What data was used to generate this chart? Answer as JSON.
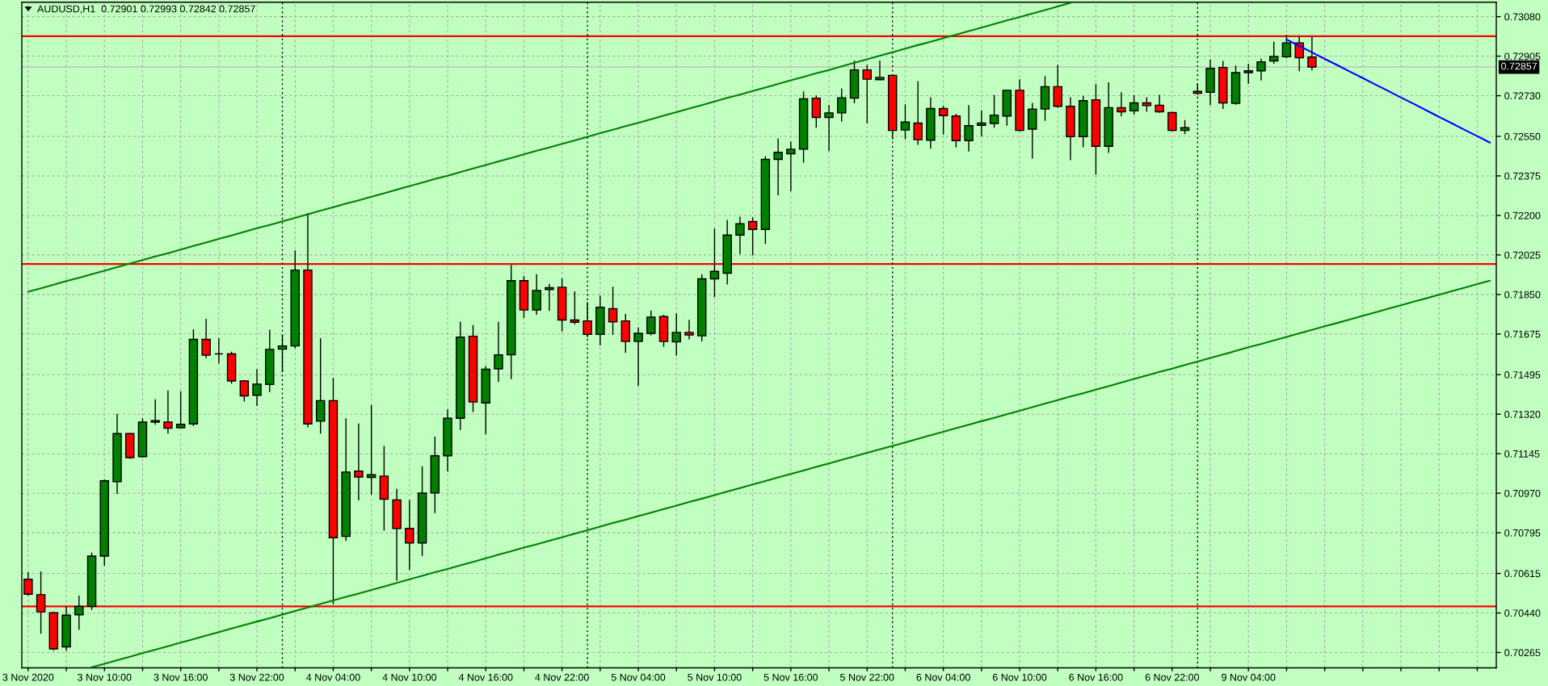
{
  "chart_data": {
    "type": "candlestick",
    "title": "AUDUSD,H1  0.72901 0.72993 0.72842 0.72857",
    "categories": [
      "3 Nov 2020",
      null,
      null,
      null,
      null,
      null,
      "3 Nov 10:00",
      null,
      null,
      null,
      null,
      null,
      "3 Nov 16:00",
      null,
      null,
      null,
      null,
      null,
      "3 Nov 22:00",
      null,
      null,
      null,
      null,
      null,
      "4 Nov 04:00",
      null,
      null,
      null,
      null,
      null,
      "4 Nov 10:00",
      null,
      null,
      null,
      null,
      null,
      "4 Nov 16:00",
      null,
      null,
      null,
      null,
      null,
      "4 Nov 22:00",
      null,
      null,
      null,
      null,
      null,
      "5 Nov 04:00",
      null,
      null,
      null,
      null,
      null,
      "5 Nov 10:00",
      null,
      null,
      null,
      null,
      null,
      "5 Nov 16:00",
      null,
      null,
      null,
      null,
      null,
      "5 Nov 22:00",
      null,
      null,
      null,
      null,
      null,
      "6 Nov 04:00",
      null,
      null,
      null,
      null,
      null,
      "6 Nov 10:00",
      null,
      null,
      null,
      null,
      null,
      "6 Nov 16:00",
      null,
      null,
      null,
      null,
      null,
      "6 Nov 22:00",
      null,
      null,
      null,
      null,
      null,
      "9 Nov 04:00",
      null,
      null,
      null,
      null,
      null,
      null,
      null,
      null,
      null,
      null,
      null,
      null,
      null,
      null,
      null,
      null,
      null,
      null,
      null
    ],
    "ohlc": [
      [
        0.70589,
        0.7062,
        0.70517,
        0.70523
      ],
      [
        0.70521,
        0.70624,
        0.70348,
        0.70445
      ],
      [
        0.70441,
        0.70445,
        0.70273,
        0.70281
      ],
      [
        0.7029,
        0.70469,
        0.70273,
        0.7043
      ],
      [
        0.70432,
        0.70517,
        0.70366,
        0.70469
      ],
      [
        0.70469,
        0.70707,
        0.70453,
        0.70692
      ],
      [
        0.70692,
        0.71031,
        0.70649,
        0.71025
      ],
      [
        0.71021,
        0.71322,
        0.70967,
        0.71234
      ],
      [
        0.71234,
        0.71238,
        0.71122,
        0.71128
      ],
      [
        0.71132,
        0.71302,
        0.71128,
        0.71285
      ],
      [
        0.71285,
        0.71386,
        0.71273,
        0.71291
      ],
      [
        0.71285,
        0.71424,
        0.71234,
        0.71258
      ],
      [
        0.7126,
        0.71422,
        0.71258,
        0.71275
      ],
      [
        0.71277,
        0.71696,
        0.71267,
        0.71651
      ],
      [
        0.71651,
        0.71742,
        0.71568,
        0.71581
      ],
      [
        0.71587,
        0.71657,
        0.71545,
        0.71587
      ],
      [
        0.71587,
        0.71597,
        0.71455,
        0.71467
      ],
      [
        0.71467,
        0.71471,
        0.71376,
        0.71401
      ],
      [
        0.71404,
        0.71519,
        0.71356,
        0.71453
      ],
      [
        0.71452,
        0.71694,
        0.71417,
        0.71607
      ],
      [
        0.71608,
        0.71671,
        0.71506,
        0.71622
      ],
      [
        0.71622,
        0.72045,
        0.71612,
        0.71958
      ],
      [
        0.71958,
        0.7221,
        0.71262,
        0.71277
      ],
      [
        0.71289,
        0.71657,
        0.71234,
        0.7138
      ],
      [
        0.7138,
        0.71481,
        0.70478,
        0.70773
      ],
      [
        0.70779,
        0.71302,
        0.70759,
        0.71064
      ],
      [
        0.71068,
        0.71279,
        0.70938,
        0.71042
      ],
      [
        0.7104,
        0.7136,
        0.70963,
        0.71052
      ],
      [
        0.71046,
        0.7118,
        0.70804,
        0.70944
      ],
      [
        0.7094,
        0.7099,
        0.70583,
        0.70814
      ],
      [
        0.70814,
        0.7094,
        0.7063,
        0.7075
      ],
      [
        0.7075,
        0.71089,
        0.70692,
        0.70971
      ],
      [
        0.70971,
        0.71221,
        0.70882,
        0.71136
      ],
      [
        0.71136,
        0.71341,
        0.71066,
        0.71302
      ],
      [
        0.71302,
        0.71729,
        0.7125,
        0.71661
      ],
      [
        0.71665,
        0.71715,
        0.7133,
        0.71374
      ],
      [
        0.7137,
        0.71533,
        0.71231,
        0.71519
      ],
      [
        0.71521,
        0.71729,
        0.71463,
        0.71583
      ],
      [
        0.71583,
        0.71981,
        0.71475,
        0.71911
      ],
      [
        0.71911,
        0.71932,
        0.71746,
        0.71781
      ],
      [
        0.71781,
        0.7194,
        0.7176,
        0.71868
      ],
      [
        0.71872,
        0.71897,
        0.71777,
        0.7188
      ],
      [
        0.71882,
        0.71921,
        0.71686,
        0.71737
      ],
      [
        0.71737,
        0.71864,
        0.71717,
        0.71727
      ],
      [
        0.71733,
        0.71816,
        0.71661,
        0.71673
      ],
      [
        0.71673,
        0.71845,
        0.71624,
        0.71793
      ],
      [
        0.71787,
        0.71884,
        0.71671,
        0.71729
      ],
      [
        0.71733,
        0.71764,
        0.71591,
        0.71642
      ],
      [
        0.71642,
        0.71704,
        0.71444,
        0.71678
      ],
      [
        0.71678,
        0.71779,
        0.71669,
        0.7175
      ],
      [
        0.71752,
        0.7176,
        0.71618,
        0.71642
      ],
      [
        0.7164,
        0.71766,
        0.71579,
        0.71682
      ],
      [
        0.71682,
        0.71738,
        0.71651,
        0.71671
      ],
      [
        0.71667,
        0.7194,
        0.71642,
        0.71919
      ],
      [
        0.71919,
        0.72142,
        0.71839,
        0.71952
      ],
      [
        0.71944,
        0.7218,
        0.71894,
        0.72113
      ],
      [
        0.72113,
        0.72194,
        0.72029,
        0.72163
      ],
      [
        0.72173,
        0.72192,
        0.72023,
        0.72138
      ],
      [
        0.72138,
        0.72462,
        0.72074,
        0.72448
      ],
      [
        0.72448,
        0.72541,
        0.72289,
        0.72479
      ],
      [
        0.72473,
        0.72527,
        0.72307,
        0.72493
      ],
      [
        0.72493,
        0.72749,
        0.72433,
        0.72716
      ],
      [
        0.72719,
        0.72731,
        0.72588,
        0.72634
      ],
      [
        0.72634,
        0.72688,
        0.72485,
        0.72654
      ],
      [
        0.72654,
        0.72762,
        0.72615,
        0.72721
      ],
      [
        0.72719,
        0.72886,
        0.72696,
        0.72844
      ],
      [
        0.72844,
        0.72867,
        0.72607,
        0.72803
      ],
      [
        0.72801,
        0.72886,
        0.72799,
        0.72811
      ],
      [
        0.7282,
        0.72822,
        0.72537,
        0.72576
      ],
      [
        0.72578,
        0.72692,
        0.72537,
        0.72613
      ],
      [
        0.72609,
        0.72795,
        0.72512,
        0.72535
      ],
      [
        0.72533,
        0.72723,
        0.72495,
        0.72673
      ],
      [
        0.72673,
        0.72686,
        0.72558,
        0.72642
      ],
      [
        0.7264,
        0.7265,
        0.72501,
        0.72531
      ],
      [
        0.72531,
        0.72688,
        0.72483,
        0.72597
      ],
      [
        0.72599,
        0.72665,
        0.72551,
        0.72609
      ],
      [
        0.72607,
        0.72734,
        0.72588,
        0.72644
      ],
      [
        0.7264,
        0.72756,
        0.72597,
        0.72754
      ],
      [
        0.72754,
        0.72803,
        0.72572,
        0.72576
      ],
      [
        0.72582,
        0.72698,
        0.72452,
        0.72671
      ],
      [
        0.72671,
        0.72816,
        0.72619,
        0.7277
      ],
      [
        0.7277,
        0.72867,
        0.72677,
        0.72683
      ],
      [
        0.72683,
        0.72723,
        0.72444,
        0.72549
      ],
      [
        0.72549,
        0.72729,
        0.72502,
        0.72708
      ],
      [
        0.72712,
        0.72781,
        0.7238,
        0.72506
      ],
      [
        0.72506,
        0.72789,
        0.72477,
        0.72677
      ],
      [
        0.72677,
        0.72745,
        0.72638,
        0.72659
      ],
      [
        0.72663,
        0.72733,
        0.72646,
        0.72698
      ],
      [
        0.72698,
        0.72723,
        0.72659,
        0.72686
      ],
      [
        0.72688,
        0.72734,
        0.72654,
        0.72659
      ],
      [
        0.72655,
        0.72659,
        0.72572,
        0.72576
      ],
      [
        0.72576,
        0.72622,
        0.7256,
        0.72588
      ],
      [
        0.72749,
        0.72785,
        0.72734,
        0.72741
      ],
      [
        0.72745,
        0.7289,
        0.72688,
        0.72851
      ],
      [
        0.72855,
        0.72884,
        0.72671,
        0.72698
      ],
      [
        0.72696,
        0.72863,
        0.7269,
        0.72832
      ],
      [
        0.72832,
        0.72871,
        0.72783,
        0.7284
      ],
      [
        0.7284,
        0.72894,
        0.72797,
        0.7288
      ],
      [
        0.72884,
        0.7297,
        0.72871,
        0.72904
      ],
      [
        0.72902,
        0.72999,
        0.72896,
        0.72964
      ],
      [
        0.72964,
        0.72995,
        0.72838,
        0.72898
      ],
      [
        0.72901,
        0.72993,
        0.72842,
        0.72857
      ],
      null,
      null,
      null,
      null,
      null,
      null,
      null,
      null,
      null,
      null,
      null,
      null,
      null,
      null
    ],
    "colors": [
      "#ff0000",
      "#ff0000",
      "#ff0000",
      "#008000",
      "#008000",
      "#008000",
      "#008000",
      "#008000",
      "#ff0000",
      "#008000",
      "#008000",
      "#ff0000",
      "#008000",
      "#008000",
      "#ff0000",
      "#000000",
      "#ff0000",
      "#ff0000",
      "#008000",
      "#008000",
      "#008000",
      "#008000",
      "#ff0000",
      "#008000",
      "#ff0000",
      "#008000",
      "#ff0000",
      "#008000",
      "#ff0000",
      "#ff0000",
      "#ff0000",
      "#008000",
      "#008000",
      "#008000",
      "#008000",
      "#ff0000",
      "#008000",
      "#008000",
      "#008000",
      "#ff0000",
      "#008000",
      "#008000",
      "#ff0000",
      "#ff0000",
      "#ff0000",
      "#008000",
      "#ff0000",
      "#ff0000",
      "#008000",
      "#008000",
      "#ff0000",
      "#008000",
      "#ff0000",
      "#008000",
      "#008000",
      "#008000",
      "#008000",
      "#ff0000",
      "#008000",
      "#008000",
      "#008000",
      "#008000",
      "#ff0000",
      "#008000",
      "#008000",
      "#008000",
      "#ff0000",
      "#008000",
      "#ff0000",
      "#008000",
      "#ff0000",
      "#008000",
      "#ff0000",
      "#ff0000",
      "#008000",
      "#008000",
      "#008000",
      "#008000",
      "#ff0000",
      "#008000",
      "#008000",
      "#ff0000",
      "#ff0000",
      "#008000",
      "#ff0000",
      "#008000",
      "#ff0000",
      "#008000",
      "#ff0000",
      "#ff0000",
      "#ff0000",
      "#008000",
      "#ff0000",
      "#008000",
      "#ff0000",
      "#008000",
      "#008000",
      "#008000",
      "#008000",
      "#008000",
      "#ff0000",
      "#ff0000",
      null,
      null,
      null,
      null,
      null,
      null,
      null,
      null,
      null,
      null,
      null,
      null,
      null,
      null
    ],
    "series": [
      {
        "type": "line",
        "color": "#008000",
        "values": [
          0.71862,
          0.71877,
          0.71893,
          0.71909,
          0.71924,
          0.7194,
          0.71955,
          0.71971,
          0.71987,
          0.72002,
          0.72018,
          0.72033,
          0.72049,
          0.72065,
          0.7208,
          0.72096,
          0.72111,
          0.72127,
          0.72143,
          0.72158,
          0.72174,
          0.72189,
          0.72205,
          0.72221,
          0.72236,
          0.72252,
          0.72267,
          0.72283,
          0.72298,
          0.72314,
          0.7233,
          0.72345,
          0.72361,
          0.72376,
          0.72392,
          0.72408,
          0.72423,
          0.72439,
          0.72454,
          0.7247,
          0.72486,
          0.72501,
          0.72517,
          0.72532,
          0.72548,
          0.72564,
          0.72579,
          0.72595,
          0.7261,
          0.72626,
          0.72642,
          0.72657,
          0.72673,
          0.72688,
          0.72704,
          0.7272,
          0.72735,
          0.72751,
          0.72766,
          0.72782,
          0.72798,
          0.72813,
          0.72829,
          0.72844,
          0.7286,
          0.72876,
          0.72891,
          0.72907,
          0.72922,
          0.72938,
          0.72954,
          0.72969,
          0.72985,
          0.73,
          0.73016,
          0.73031,
          0.73047,
          0.73063,
          0.73078,
          0.73094,
          0.73109,
          0.73125,
          0.73141,
          null,
          null,
          null,
          null,
          null,
          null,
          null,
          null,
          null,
          null,
          null,
          null,
          null,
          null,
          null,
          null,
          null,
          null,
          null,
          null,
          null,
          null,
          null,
          null,
          null,
          null,
          null,
          null,
          null,
          null,
          null,
          null,
          null
        ]
      },
      {
        "type": "line",
        "color": "#008000",
        "values": [
          null,
          null,
          null,
          null,
          null,
          0.702,
          0.70215,
          0.70231,
          0.70246,
          0.70262,
          0.70277,
          0.70293,
          0.70309,
          0.70324,
          0.7034,
          0.70355,
          0.70371,
          0.70386,
          0.70402,
          0.70417,
          0.70433,
          0.70449,
          0.70464,
          0.7048,
          0.70495,
          0.70511,
          0.70526,
          0.70542,
          0.70557,
          0.70573,
          0.70589,
          0.70604,
          0.7062,
          0.70635,
          0.70651,
          0.70666,
          0.70682,
          0.70698,
          0.70713,
          0.70729,
          0.70744,
          0.7076,
          0.70775,
          0.70791,
          0.70806,
          0.70822,
          0.70838,
          0.70853,
          0.70869,
          0.70884,
          0.709,
          0.70915,
          0.70931,
          0.70946,
          0.70962,
          0.70978,
          0.70993,
          0.71009,
          0.71024,
          0.7104,
          0.71055,
          0.71071,
          0.71087,
          0.71102,
          0.71118,
          0.71133,
          0.71149,
          0.71164,
          0.7118,
          0.71195,
          0.71211,
          0.71227,
          0.71242,
          0.71258,
          0.71273,
          0.71289,
          0.71304,
          0.7132,
          0.71335,
          0.71351,
          0.71367,
          0.71382,
          0.71398,
          0.71413,
          0.71429,
          0.71444,
          0.7146,
          0.71476,
          0.71491,
          0.71507,
          0.71522,
          0.71538,
          0.71553,
          0.71569,
          0.71584,
          0.716,
          0.71616,
          0.71631,
          0.71647,
          0.71662,
          0.71678,
          0.71693,
          0.71709,
          0.71724,
          0.7174,
          0.71756,
          0.71771,
          0.71787,
          0.71802,
          0.71818,
          0.71833,
          0.71849,
          0.71865,
          0.7188,
          0.71896,
          0.71911
        ]
      },
      {
        "type": "line",
        "color": "#0000ff",
        "values": [
          null,
          null,
          null,
          null,
          null,
          null,
          null,
          null,
          null,
          null,
          null,
          null,
          null,
          null,
          null,
          null,
          null,
          null,
          null,
          null,
          null,
          null,
          null,
          null,
          null,
          null,
          null,
          null,
          null,
          null,
          null,
          null,
          null,
          null,
          null,
          null,
          null,
          null,
          null,
          null,
          null,
          null,
          null,
          null,
          null,
          null,
          null,
          null,
          null,
          null,
          null,
          null,
          null,
          null,
          null,
          null,
          null,
          null,
          null,
          null,
          null,
          null,
          null,
          null,
          null,
          null,
          null,
          null,
          null,
          null,
          null,
          null,
          null,
          null,
          null,
          null,
          null,
          null,
          null,
          null,
          null,
          null,
          null,
          null,
          null,
          null,
          null,
          null,
          null,
          null,
          null,
          null,
          null,
          null,
          null,
          null,
          null,
          null,
          null,
          0.72979,
          0.7295,
          0.72922,
          0.72893,
          0.72865,
          0.72836,
          0.72808,
          0.72779,
          0.72751,
          0.72722,
          0.72694,
          0.72665,
          0.72636,
          0.72608,
          0.72579,
          0.72551,
          0.72522
        ]
      }
    ],
    "ref_lines": [
      {
        "axis": "y",
        "value": 0.72993,
        "color": "#ff0000"
      },
      {
        "axis": "y",
        "value": 0.71985,
        "color": "#ff0000"
      },
      {
        "axis": "y",
        "value": 0.70469,
        "color": "#ff0000"
      },
      {
        "axis": "y",
        "value": 0.72857,
        "label": "0.72857",
        "color": "#c0c0c0"
      }
    ],
    "ylim": [
      0.70197,
      0.73144
    ],
    "yticks": [
      {
        "value": 0.7308,
        "label": "0.73080"
      },
      {
        "value": 0.72905,
        "label": "0.72905"
      },
      {
        "value": 0.7273,
        "label": "0.72730"
      },
      {
        "value": 0.7255,
        "label": "0.72550"
      },
      {
        "value": 0.72375,
        "label": "0.72375"
      },
      {
        "value": 0.722,
        "label": "0.72200"
      },
      {
        "value": 0.72025,
        "label": "0.72025"
      },
      {
        "value": 0.7185,
        "label": "0.71850"
      },
      {
        "value": 0.71675,
        "label": "0.71675"
      },
      {
        "value": 0.71495,
        "label": "0.71495"
      },
      {
        "value": 0.7132,
        "label": "0.71320"
      },
      {
        "value": 0.71145,
        "label": "0.71145"
      },
      {
        "value": 0.7097,
        "label": "0.70970"
      },
      {
        "value": 0.70795,
        "label": "0.70795"
      },
      {
        "value": 0.70615,
        "label": "0.70615"
      },
      {
        "value": 0.7044,
        "label": "0.70440"
      },
      {
        "value": 0.70265,
        "label": "0.70265"
      }
    ],
    "grid": true
  }
}
